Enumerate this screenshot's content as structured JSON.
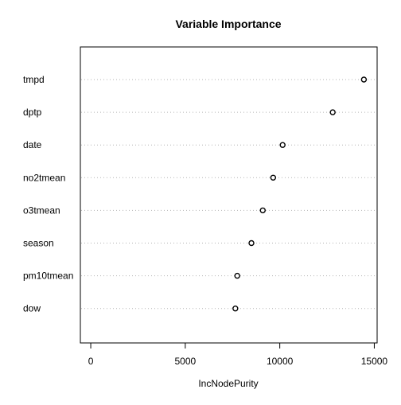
{
  "chart_data": {
    "type": "scatter",
    "title": "Variable Importance",
    "xlabel": "IncNodePurity",
    "ylabel": "",
    "categories": [
      "tmpd",
      "dptp",
      "date",
      "no2tmean",
      "o3tmean",
      "season",
      "pm10tmean",
      "dow"
    ],
    "values": [
      14450,
      12800,
      10150,
      9650,
      9100,
      8500,
      7750,
      7650
    ],
    "xlim": [
      -550,
      15150
    ],
    "xticks": [
      0,
      5000,
      10000,
      15000
    ],
    "xtick_labels": [
      "0",
      "5000",
      "10000",
      "15000"
    ],
    "grid": "dotted horizontal lines per category",
    "marker": "open-circle",
    "colors": {
      "marker_stroke": "#000000",
      "grid": "#b3b3b3",
      "axes": "#000000"
    }
  }
}
